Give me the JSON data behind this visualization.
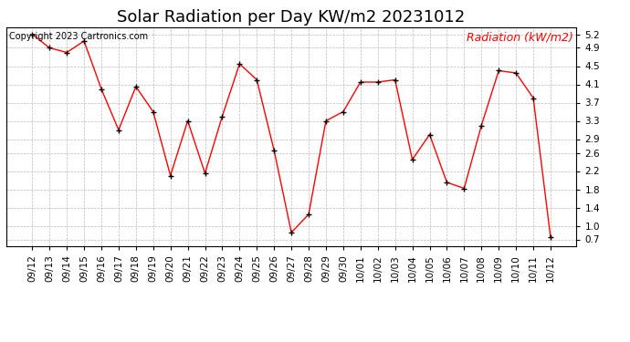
{
  "title": "Solar Radiation per Day KW/m2 20231012",
  "copyright_text": "Copyright 2023 Cartronics.com",
  "legend_label": "Radiation (kW/m2)",
  "dates": [
    "09/12",
    "09/13",
    "09/14",
    "09/15",
    "09/16",
    "09/17",
    "09/18",
    "09/19",
    "09/20",
    "09/21",
    "09/22",
    "09/23",
    "09/24",
    "09/25",
    "09/26",
    "09/27",
    "09/28",
    "09/29",
    "09/30",
    "10/01",
    "10/02",
    "10/03",
    "10/04",
    "10/05",
    "10/06",
    "10/07",
    "10/08",
    "10/09",
    "10/10",
    "10/11",
    "10/12"
  ],
  "values": [
    5.2,
    4.9,
    4.8,
    5.05,
    4.0,
    3.1,
    4.05,
    3.5,
    2.1,
    3.3,
    2.15,
    3.4,
    4.55,
    4.2,
    2.65,
    0.85,
    1.25,
    3.3,
    3.5,
    4.15,
    4.15,
    4.2,
    2.45,
    3.0,
    1.95,
    1.82,
    3.2,
    4.4,
    4.35,
    3.8,
    0.75
  ],
  "line_color": "red",
  "marker_color": "black",
  "bg_color": "#ffffff",
  "grid_color": "#bbbbbb",
  "ylim": [
    0.55,
    5.35
  ],
  "yticks": [
    0.7,
    1.0,
    1.4,
    1.8,
    2.2,
    2.6,
    2.9,
    3.3,
    3.7,
    4.1,
    4.5,
    4.9,
    5.2
  ],
  "title_fontsize": 13,
  "label_fontsize": 7.5,
  "copyright_fontsize": 7,
  "legend_fontsize": 9
}
